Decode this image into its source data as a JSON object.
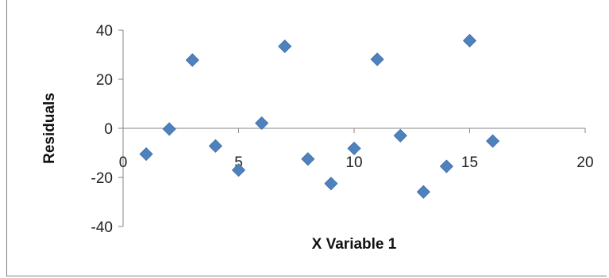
{
  "chart_data": {
    "type": "scatter",
    "title": "",
    "xlabel": "X Variable 1",
    "ylabel": "Residuals",
    "xlim": [
      0,
      20
    ],
    "ylim": [
      -40,
      40
    ],
    "x_ticks": [
      0,
      5,
      10,
      15,
      20
    ],
    "y_ticks": [
      -40,
      -20,
      0,
      20,
      40
    ],
    "x_tick_labels": [
      "0",
      "5",
      "10",
      "15",
      "20"
    ],
    "y_tick_labels": [
      "-40",
      "-20",
      "0",
      "20",
      "40"
    ],
    "grid": false,
    "legend": "none",
    "marker": "diamond",
    "marker_color": "#4f81bd",
    "series": [
      {
        "x": [
          1,
          2,
          3,
          4,
          5,
          6,
          7,
          8,
          9,
          10,
          11,
          12,
          13,
          14,
          15,
          16
        ],
        "y": [
          -10.5,
          -0.3,
          27.8,
          -7.2,
          -17,
          2.1,
          33.4,
          -12.5,
          -22.5,
          -8.2,
          28.1,
          -3,
          -25.9,
          -15.5,
          35.7,
          -5.2
        ]
      }
    ]
  }
}
